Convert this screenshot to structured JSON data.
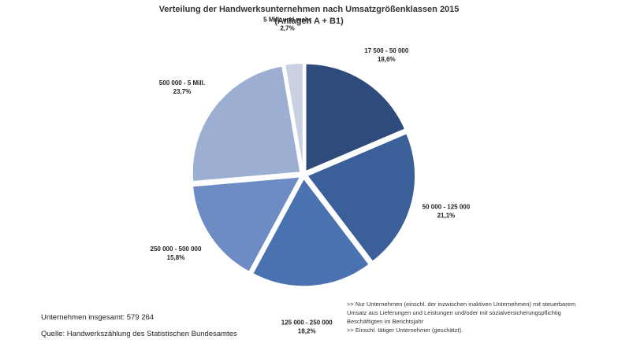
{
  "chart_data": {
    "type": "pie",
    "title": "Verteilung der Handwerksunternehmen nach Umsatzgrößenklassen 2015",
    "subtitle": "(Anlagen A + B1)",
    "slices": [
      {
        "label": "17 500 - 50 000",
        "value": 18.6,
        "value_label": "18,6%",
        "color": "#2f4b7c"
      },
      {
        "label": "50 000 - 125 000",
        "value": 21.1,
        "value_label": "21,1%",
        "color": "#3b5f99"
      },
      {
        "label": "125 000 - 250 000",
        "value": 18.2,
        "value_label": "18,2%",
        "color": "#4a72b0"
      },
      {
        "label": "250 000 - 500 000",
        "value": 15.8,
        "value_label": "15,8%",
        "color": "#6d8cc4"
      },
      {
        "label": "500 000 - 5 Mill.",
        "value": 23.7,
        "value_label": "23,7%",
        "color": "#9caed2"
      },
      {
        "label": "5 Mill. und mehr",
        "value": 2.7,
        "value_label": "2,7%",
        "color": "#c8d0e2"
      }
    ],
    "legend": "none"
  },
  "footer": {
    "total": "Unternehmen insgesamt: 579 264",
    "source": "Quelle: Handwerkszählung des Statistischen Bundesamtes"
  },
  "notes": {
    "line1": ">> Nur Unternehmen (einschl. der inzwischen inaktiven Unternehmen) mit steuerbarem",
    "line2": "Umsatz aus Lieferungen und Leistungen und/oder mit sozialversicherungspflichtig",
    "line3": "Beschäftigten im Berichtsjahr",
    "line4": ">> Einschl. tätiger Unternehmer (geschätzt)."
  }
}
